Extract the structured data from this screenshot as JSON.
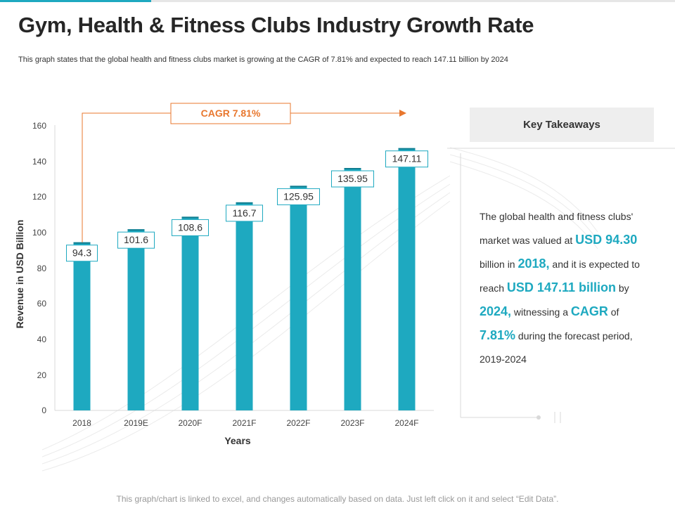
{
  "header": {
    "title": "Gym, Health & Fitness Clubs Industry Growth Rate",
    "subtitle": "This graph states that the global health and fitness clubs market is growing at the CAGR of 7.81%  and expected to reach 147.11 billion by 2024"
  },
  "chart_data": {
    "type": "bar",
    "title": "",
    "categories": [
      "2018",
      "2019E",
      "2020F",
      "2021F",
      "2022F",
      "2023F",
      "2024F"
    ],
    "values": [
      94.3,
      101.6,
      108.6,
      116.7,
      125.95,
      135.95,
      147.11
    ],
    "data_labels": [
      "94.3",
      "101.6",
      "108.6",
      "116.7",
      "125.95",
      "135.95",
      "147.11"
    ],
    "xlabel": "Years",
    "ylabel": "Revenue in USD Billion",
    "ylim": [
      0,
      160
    ],
    "yticks": [
      0,
      20,
      40,
      60,
      80,
      100,
      120,
      140,
      160
    ],
    "grid": false,
    "bar_color": "#1ea9c0",
    "annotation": {
      "text": "CAGR 7.81%",
      "color": "#e8772e"
    }
  },
  "takeaways": {
    "header": "Key Takeaways",
    "p1": "The global health and fitness clubs' market was valued at ",
    "v1": "USD 94.30",
    "p2": " billion in ",
    "v2": "2018,",
    "p3": " and it is expected to reach ",
    "v3": "USD 147.11 billion",
    "p4": " by ",
    "v4": "2024,",
    "p5": " witnessing a ",
    "v5": "CAGR",
    "p6": " of ",
    "v6": "7.81%",
    "p7": " during the forecast period, 2019-2024"
  },
  "footer": {
    "note": "This graph/chart is linked to excel, and changes automatically based on data. Just left click on it and select “Edit Data”."
  }
}
